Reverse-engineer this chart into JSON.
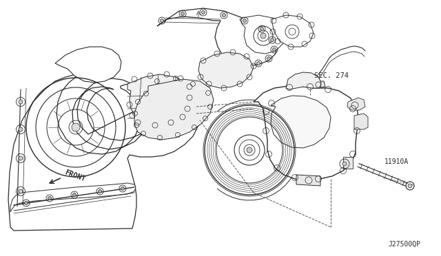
{
  "bg_color": "#ffffff",
  "line_color": "#2a2a2a",
  "label_sec274": "SEC. 274",
  "label_11910a": "11910A",
  "label_front": "FRONT",
  "label_partno": "J27500QP",
  "fig_width": 6.4,
  "fig_height": 3.72,
  "dpi": 100
}
